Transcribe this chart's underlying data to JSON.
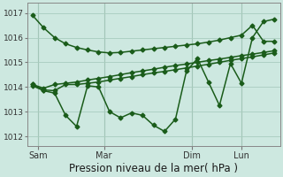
{
  "bg_color": "#cde8e0",
  "grid_color": "#a8ccbf",
  "line_color": "#1a5c1a",
  "marker": "D",
  "markersize": 2.5,
  "linewidth": 1.1,
  "xlabel": "Pression niveau de la mer( hPa )",
  "xlabel_fontsize": 8.5,
  "yticks": [
    1012,
    1013,
    1014,
    1015,
    1016,
    1017
  ],
  "ylim": [
    1011.6,
    1017.4
  ],
  "xlim": [
    -0.5,
    22.5
  ],
  "xtick_positions": [
    0.5,
    6.5,
    14.5,
    19.0
  ],
  "xtick_labels": [
    "Sam",
    "Mar",
    "Dim",
    "Lun"
  ],
  "vline_positions": [
    0.5,
    6.5,
    14.5,
    19.0
  ],
  "series": [
    {
      "x": [
        0,
        1,
        2,
        3,
        4,
        5,
        6,
        7,
        8,
        9,
        10,
        11,
        12,
        13,
        14,
        15,
        16,
        17,
        18,
        19,
        20,
        21,
        22
      ],
      "y": [
        1016.9,
        1016.4,
        1016.0,
        1015.75,
        1015.6,
        1015.5,
        1015.42,
        1015.38,
        1015.4,
        1015.45,
        1015.5,
        1015.55,
        1015.6,
        1015.65,
        1015.7,
        1015.75,
        1015.82,
        1015.9,
        1016.0,
        1016.1,
        1016.5,
        1015.85,
        1015.85
      ]
    },
    {
      "x": [
        0,
        1,
        2,
        3,
        4,
        5,
        6,
        7,
        8,
        9,
        10,
        11,
        12,
        13,
        14,
        15,
        16,
        17,
        18,
        19,
        20,
        21,
        22
      ],
      "y": [
        1014.1,
        1013.95,
        1014.1,
        1014.15,
        1014.2,
        1014.28,
        1014.35,
        1014.42,
        1014.5,
        1014.58,
        1014.65,
        1014.72,
        1014.8,
        1014.87,
        1014.93,
        1015.0,
        1015.07,
        1015.13,
        1015.2,
        1015.27,
        1015.33,
        1015.4,
        1015.47
      ]
    },
    {
      "x": [
        0,
        1,
        2,
        3,
        4,
        5,
        6,
        7,
        8,
        9,
        10,
        11,
        12,
        13,
        14,
        15,
        16,
        17,
        18,
        19,
        20,
        21,
        22
      ],
      "y": [
        1014.1,
        1013.88,
        1013.85,
        1014.1,
        1014.1,
        1014.15,
        1014.2,
        1014.28,
        1014.35,
        1014.42,
        1014.5,
        1014.57,
        1014.63,
        1014.7,
        1014.77,
        1014.85,
        1014.92,
        1015.0,
        1015.08,
        1015.15,
        1015.22,
        1015.3,
        1015.38
      ]
    },
    {
      "x": [
        0,
        1,
        2,
        3,
        4,
        5,
        6,
        7,
        8,
        9,
        10,
        11,
        12,
        13,
        14,
        15,
        16,
        17,
        18,
        19,
        20,
        21,
        22
      ],
      "y": [
        1014.05,
        1013.85,
        1013.75,
        1012.85,
        1012.4,
        1014.05,
        1014.0,
        1013.0,
        1012.75,
        1012.95,
        1012.85,
        1012.45,
        1012.2,
        1012.7,
        1014.65,
        1015.15,
        1014.2,
        1013.25,
        1014.95,
        1014.15,
        1016.0,
        1016.65,
        1016.75
      ]
    }
  ]
}
